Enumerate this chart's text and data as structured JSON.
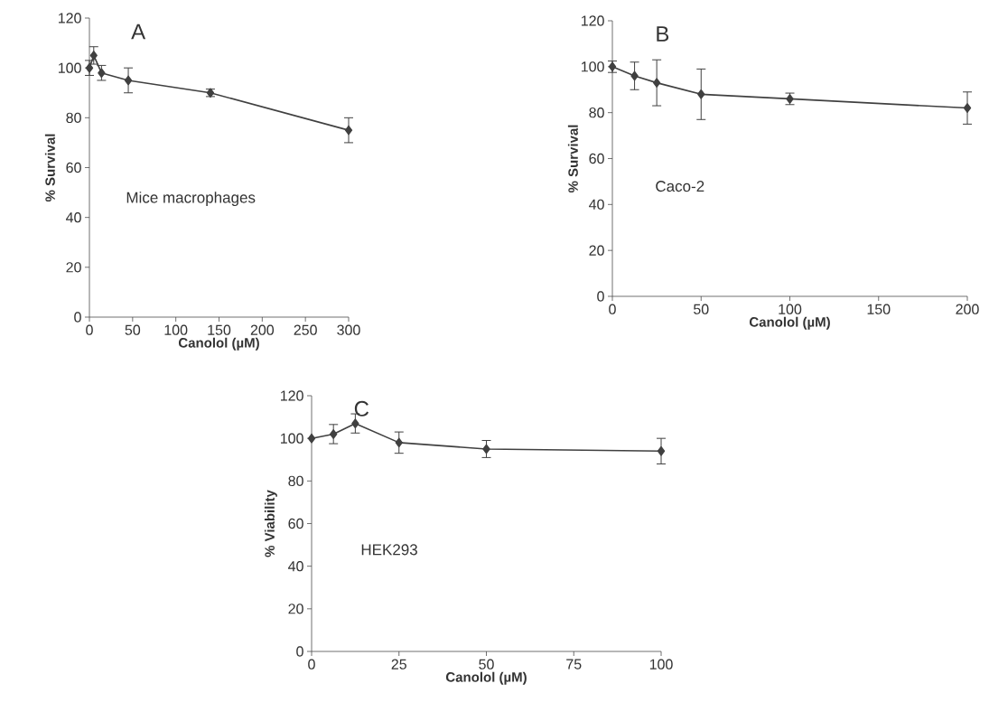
{
  "chart_data": [
    {
      "type": "line",
      "x": [
        0,
        5,
        14,
        45,
        140,
        300
      ],
      "values": [
        100,
        105,
        98,
        95,
        90,
        75
      ],
      "errors": [
        3,
        3.5,
        3,
        5,
        1.5,
        5
      ],
      "color": "#404040",
      "marker": "diamond",
      "line_style": "solid",
      "xlim": [
        0,
        300
      ],
      "ylim": [
        0,
        120
      ],
      "xticks": [
        0,
        50,
        100,
        150,
        200,
        250,
        300
      ],
      "yticks": [
        0,
        20,
        40,
        60,
        80,
        100,
        120
      ],
      "xlabel": "Canolol (µM)",
      "ylabel": "% Survival",
      "annotations": [
        "A",
        "Mice macrophages"
      ]
    },
    {
      "type": "line",
      "x": [
        0,
        12.5,
        25,
        50,
        100,
        200
      ],
      "values": [
        100,
        96,
        93,
        88,
        86,
        82
      ],
      "errors": [
        2.5,
        6,
        10,
        11,
        2.5,
        7
      ],
      "color": "#404040",
      "marker": "diamond",
      "line_style": "solid",
      "xlim": [
        0,
        200
      ],
      "ylim": [
        0,
        120
      ],
      "xticks": [
        0,
        50,
        100,
        150,
        200
      ],
      "yticks": [
        0,
        20,
        40,
        60,
        80,
        100,
        120
      ],
      "xlabel": "Canolol (µM)",
      "ylabel": "% Survival",
      "annotations": [
        "B",
        "Caco-2"
      ]
    },
    {
      "type": "line",
      "x": [
        0,
        6.25,
        12.5,
        25,
        50,
        100
      ],
      "values": [
        100,
        102,
        107,
        98,
        95,
        94
      ],
      "errors": [
        null,
        4.5,
        4.5,
        5,
        4,
        6
      ],
      "color": "#404040",
      "marker": "diamond",
      "line_style": "solid",
      "xlim": [
        0,
        100
      ],
      "ylim": [
        0,
        120
      ],
      "xticks": [
        0,
        25,
        50,
        75,
        100
      ],
      "yticks": [
        0,
        20,
        40,
        60,
        80,
        100,
        120
      ],
      "xlabel": "Canolol (µM)",
      "ylabel": "% Viability",
      "annotations": [
        "C",
        "HEK293"
      ]
    }
  ]
}
